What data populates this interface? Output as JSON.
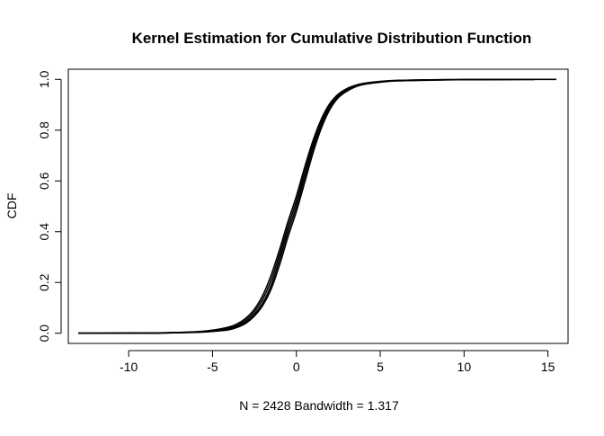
{
  "chart_data": {
    "type": "line",
    "title": "Kernel Estimation for Cumulative Distribution Function",
    "xlabel": "N = 2428   Bandwidth = 1.317",
    "ylabel": "CDF",
    "xlim": [
      -13.6,
      16.2
    ],
    "ylim": [
      -0.04,
      1.04
    ],
    "x_ticks": [
      -10,
      -5,
      0,
      5,
      10,
      15
    ],
    "x_tick_labels": [
      "-10",
      "-5",
      "0",
      "5",
      "10",
      "15"
    ],
    "y_ticks": [
      0.0,
      0.2,
      0.4,
      0.6,
      0.8,
      1.0
    ],
    "y_tick_labels": [
      "0.0",
      "0.2",
      "0.4",
      "0.6",
      "0.8",
      "1.0"
    ],
    "grid": false,
    "legend": "none",
    "line_color": "#000000",
    "series": [
      {
        "x": [
          -13.0,
          -10.0,
          -8.0,
          -6.0,
          -5.0,
          -4.0,
          -3.5,
          -3.0,
          -2.5,
          -2.0,
          -1.5,
          -1.0,
          -0.5,
          0.0,
          0.5,
          1.0,
          1.5,
          2.0,
          2.5,
          3.0,
          3.5,
          4.0,
          5.0,
          6.0,
          8.0,
          10.0,
          12.0,
          14.2
        ],
        "y": [
          0.0,
          0.0008,
          0.002,
          0.006,
          0.012,
          0.025,
          0.038,
          0.06,
          0.095,
          0.15,
          0.23,
          0.33,
          0.44,
          0.54,
          0.655,
          0.76,
          0.845,
          0.905,
          0.942,
          0.963,
          0.976,
          0.984,
          0.992,
          0.996,
          0.998,
          0.999,
          0.9995,
          1.0
        ]
      },
      {
        "x": [
          -13.0,
          -10.0,
          -8.0,
          -6.0,
          -5.0,
          -4.0,
          -3.5,
          -3.0,
          -2.5,
          -2.0,
          -1.5,
          -1.0,
          -0.5,
          0.0,
          0.5,
          1.0,
          1.5,
          2.0,
          2.5,
          3.0,
          3.5,
          4.0,
          5.0,
          6.0,
          8.0,
          10.0,
          12.0,
          14.2
        ],
        "y": [
          0.0,
          0.0006,
          0.0015,
          0.005,
          0.01,
          0.02,
          0.032,
          0.052,
          0.085,
          0.135,
          0.21,
          0.31,
          0.42,
          0.52,
          0.635,
          0.745,
          0.835,
          0.898,
          0.938,
          0.96,
          0.974,
          0.983,
          0.991,
          0.995,
          0.998,
          0.999,
          0.9995,
          1.0
        ]
      },
      {
        "x": [
          -13.0,
          -10.0,
          -8.0,
          -6.0,
          -5.0,
          -4.0,
          -3.5,
          -3.0,
          -2.5,
          -2.0,
          -1.5,
          -1.0,
          -0.5,
          0.0,
          0.5,
          1.0,
          1.5,
          2.0,
          2.5,
          3.0,
          3.5,
          4.0,
          5.0,
          6.0,
          8.0,
          10.0,
          12.0,
          14.2
        ],
        "y": [
          0.0,
          0.0004,
          0.001,
          0.004,
          0.008,
          0.016,
          0.027,
          0.045,
          0.075,
          0.12,
          0.19,
          0.29,
          0.4,
          0.5,
          0.615,
          0.73,
          0.822,
          0.89,
          0.933,
          0.957,
          0.972,
          0.982,
          0.99,
          0.995,
          0.998,
          0.999,
          0.9995,
          1.0
        ]
      },
      {
        "x": [
          -13.0,
          -10.0,
          -8.0,
          -6.0,
          -5.0,
          -4.0,
          -3.5,
          -3.0,
          -2.5,
          -2.0,
          -1.5,
          -1.0,
          -0.5,
          0.0,
          0.5,
          1.0,
          1.5,
          2.0,
          2.5,
          3.0,
          3.5,
          4.0,
          5.0,
          6.0,
          8.0,
          10.0,
          12.0,
          14.0,
          15.5
        ],
        "y": [
          0.0,
          0.0004,
          0.001,
          0.0035,
          0.007,
          0.014,
          0.024,
          0.04,
          0.068,
          0.11,
          0.175,
          0.27,
          0.38,
          0.48,
          0.595,
          0.712,
          0.81,
          0.882,
          0.928,
          0.953,
          0.97,
          0.98,
          0.989,
          0.994,
          0.997,
          0.999,
          0.9995,
          0.9998,
          1.0
        ]
      }
    ]
  }
}
